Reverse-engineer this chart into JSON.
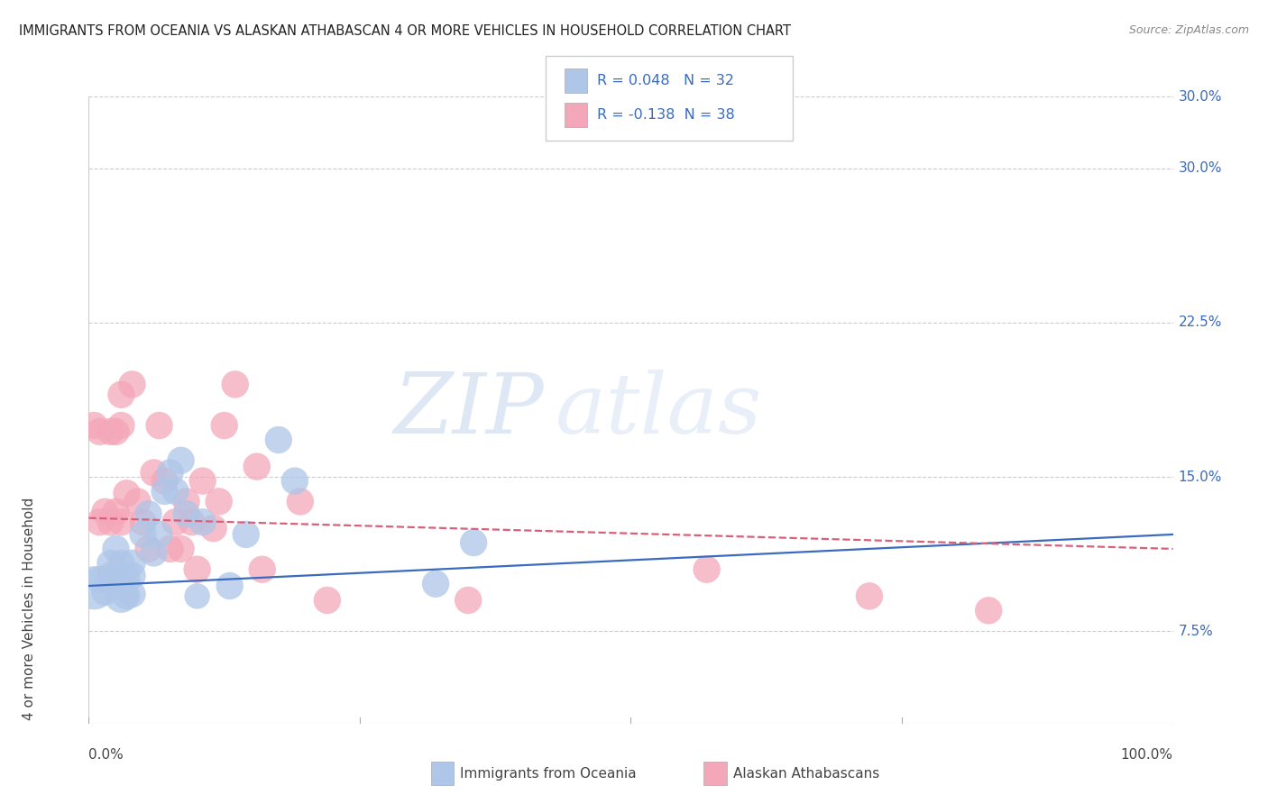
{
  "title": "IMMIGRANTS FROM OCEANIA VS ALASKAN ATHABASCAN 4 OR MORE VEHICLES IN HOUSEHOLD CORRELATION CHART",
  "source": "Source: ZipAtlas.com",
  "ylabel": "4 or more Vehicles in Household",
  "ytick_labels": [
    "7.5%",
    "15.0%",
    "22.5%",
    "30.0%"
  ],
  "ytick_vals": [
    0.075,
    0.15,
    0.225,
    0.3
  ],
  "xmin": 0.0,
  "xmax": 1.0,
  "ymin": 0.03,
  "ymax": 0.335,
  "color_oceania": "#aec6e8",
  "color_athabascan": "#f4a7b9",
  "color_line_oceania": "#3a6bbf",
  "color_line_athabascan": "#d9607a",
  "watermark_zip": "ZIP",
  "watermark_atlas": "atlas",
  "legend_text_color": "#3a6bbf",
  "legend_r1": "R = 0.048",
  "legend_n1": "N = 32",
  "legend_r2": "R = -0.138",
  "legend_n2": "N = 38",
  "oceania_x": [
    0.005,
    0.01,
    0.015,
    0.02,
    0.02,
    0.025,
    0.025,
    0.03,
    0.03,
    0.03,
    0.035,
    0.035,
    0.04,
    0.04,
    0.04,
    0.05,
    0.055,
    0.06,
    0.065,
    0.07,
    0.075,
    0.08,
    0.085,
    0.09,
    0.1,
    0.105,
    0.13,
    0.145,
    0.175,
    0.19,
    0.32,
    0.355
  ],
  "oceania_y": [
    0.096,
    0.1,
    0.094,
    0.102,
    0.108,
    0.1,
    0.115,
    0.092,
    0.1,
    0.108,
    0.092,
    0.1,
    0.093,
    0.102,
    0.108,
    0.122,
    0.132,
    0.113,
    0.122,
    0.143,
    0.152,
    0.143,
    0.158,
    0.132,
    0.092,
    0.128,
    0.097,
    0.122,
    0.168,
    0.148,
    0.098,
    0.118
  ],
  "oceania_size": [
    200,
    80,
    80,
    80,
    80,
    80,
    80,
    120,
    80,
    80,
    80,
    80,
    80,
    80,
    80,
    80,
    80,
    80,
    80,
    80,
    80,
    80,
    80,
    80,
    70,
    80,
    80,
    80,
    80,
    80,
    80,
    80
  ],
  "athabascan_x": [
    0.005,
    0.01,
    0.01,
    0.015,
    0.02,
    0.02,
    0.025,
    0.025,
    0.03,
    0.03,
    0.03,
    0.035,
    0.04,
    0.045,
    0.05,
    0.055,
    0.06,
    0.065,
    0.07,
    0.075,
    0.08,
    0.085,
    0.09,
    0.095,
    0.1,
    0.105,
    0.115,
    0.12,
    0.125,
    0.135,
    0.155,
    0.16,
    0.195,
    0.22,
    0.35,
    0.57,
    0.72,
    0.83
  ],
  "athabascan_y": [
    0.175,
    0.128,
    0.172,
    0.133,
    0.128,
    0.172,
    0.133,
    0.172,
    0.175,
    0.19,
    0.128,
    0.142,
    0.195,
    0.138,
    0.128,
    0.115,
    0.152,
    0.175,
    0.148,
    0.115,
    0.128,
    0.115,
    0.138,
    0.128,
    0.105,
    0.148,
    0.125,
    0.138,
    0.175,
    0.195,
    0.155,
    0.105,
    0.138,
    0.09,
    0.09,
    0.105,
    0.092,
    0.085
  ],
  "athabascan_size": [
    80,
    80,
    80,
    80,
    80,
    80,
    80,
    80,
    80,
    80,
    80,
    80,
    80,
    80,
    80,
    80,
    80,
    80,
    80,
    80,
    80,
    80,
    80,
    80,
    80,
    80,
    80,
    80,
    80,
    80,
    80,
    80,
    80,
    80,
    80,
    80,
    80,
    80
  ]
}
